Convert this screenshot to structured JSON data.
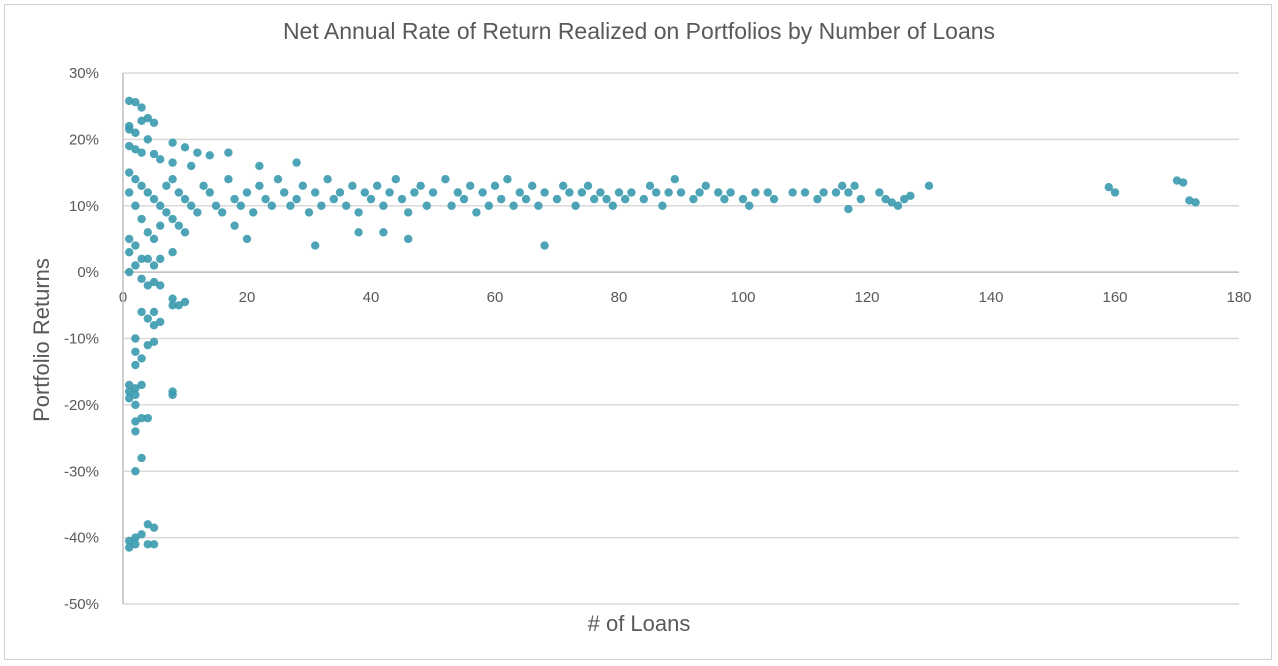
{
  "chart_data": {
    "type": "scatter",
    "title": "Net Annual Rate of Return Realized on Portfolios by Number of Loans",
    "xlabel": "# of Loans",
    "ylabel": "Portfolio Returns",
    "xlim": [
      0,
      180
    ],
    "ylim": [
      -0.5,
      0.3
    ],
    "x_ticks": [
      "0",
      "20",
      "40",
      "60",
      "80",
      "100",
      "120",
      "140",
      "160",
      "180"
    ],
    "y_ticks": [
      "30%",
      "20%",
      "10%",
      "0%",
      "-10%",
      "-20%",
      "-30%",
      "-40%",
      "-50%"
    ],
    "grid": "horizontal",
    "legend": "none",
    "marker_color": "#3a9aae",
    "series": [
      {
        "points": [
          [
            1,
            0.258
          ],
          [
            2,
            0.256
          ],
          [
            3,
            0.248
          ],
          [
            1,
            0.22
          ],
          [
            4,
            0.232
          ],
          [
            3,
            0.228
          ],
          [
            5,
            0.225
          ],
          [
            1,
            0.215
          ],
          [
            2,
            0.21
          ],
          [
            4,
            0.2
          ],
          [
            1,
            0.19
          ],
          [
            2,
            0.185
          ],
          [
            3,
            0.18
          ],
          [
            5,
            0.178
          ],
          [
            6,
            0.17
          ],
          [
            8,
            0.195
          ],
          [
            10,
            0.188
          ],
          [
            12,
            0.18
          ],
          [
            14,
            0.176
          ],
          [
            17,
            0.18
          ],
          [
            28,
            0.165
          ],
          [
            22,
            0.16
          ],
          [
            8,
            0.165
          ],
          [
            11,
            0.16
          ],
          [
            1,
            0.15
          ],
          [
            2,
            0.14
          ],
          [
            3,
            0.13
          ],
          [
            4,
            0.12
          ],
          [
            5,
            0.11
          ],
          [
            6,
            0.1
          ],
          [
            7,
            0.09
          ],
          [
            8,
            0.08
          ],
          [
            9,
            0.07
          ],
          [
            10,
            0.06
          ],
          [
            1,
            0.12
          ],
          [
            2,
            0.1
          ],
          [
            3,
            0.08
          ],
          [
            4,
            0.06
          ],
          [
            5,
            0.05
          ],
          [
            6,
            0.07
          ],
          [
            7,
            0.13
          ],
          [
            8,
            0.14
          ],
          [
            9,
            0.12
          ],
          [
            10,
            0.11
          ],
          [
            11,
            0.1
          ],
          [
            12,
            0.09
          ],
          [
            13,
            0.13
          ],
          [
            14,
            0.12
          ],
          [
            15,
            0.1
          ],
          [
            16,
            0.09
          ],
          [
            17,
            0.14
          ],
          [
            18,
            0.11
          ],
          [
            19,
            0.1
          ],
          [
            20,
            0.12
          ],
          [
            21,
            0.09
          ],
          [
            22,
            0.13
          ],
          [
            23,
            0.11
          ],
          [
            24,
            0.1
          ],
          [
            25,
            0.14
          ],
          [
            26,
            0.12
          ],
          [
            27,
            0.1
          ],
          [
            28,
            0.11
          ],
          [
            29,
            0.13
          ],
          [
            30,
            0.09
          ],
          [
            31,
            0.12
          ],
          [
            32,
            0.1
          ],
          [
            33,
            0.14
          ],
          [
            34,
            0.11
          ],
          [
            35,
            0.12
          ],
          [
            36,
            0.1
          ],
          [
            37,
            0.13
          ],
          [
            38,
            0.09
          ],
          [
            39,
            0.12
          ],
          [
            40,
            0.11
          ],
          [
            41,
            0.13
          ],
          [
            42,
            0.1
          ],
          [
            43,
            0.12
          ],
          [
            44,
            0.14
          ],
          [
            45,
            0.11
          ],
          [
            46,
            0.09
          ],
          [
            47,
            0.12
          ],
          [
            48,
            0.13
          ],
          [
            49,
            0.1
          ],
          [
            50,
            0.12
          ],
          [
            52,
            0.14
          ],
          [
            53,
            0.1
          ],
          [
            54,
            0.12
          ],
          [
            55,
            0.11
          ],
          [
            56,
            0.13
          ],
          [
            57,
            0.09
          ],
          [
            58,
            0.12
          ],
          [
            59,
            0.1
          ],
          [
            60,
            0.13
          ],
          [
            61,
            0.11
          ],
          [
            62,
            0.14
          ],
          [
            63,
            0.1
          ],
          [
            64,
            0.12
          ],
          [
            65,
            0.11
          ],
          [
            66,
            0.13
          ],
          [
            67,
            0.1
          ],
          [
            68,
            0.12
          ],
          [
            70,
            0.11
          ],
          [
            71,
            0.13
          ],
          [
            72,
            0.12
          ],
          [
            73,
            0.1
          ],
          [
            74,
            0.12
          ],
          [
            75,
            0.13
          ],
          [
            76,
            0.11
          ],
          [
            77,
            0.12
          ],
          [
            78,
            0.11
          ],
          [
            79,
            0.1
          ],
          [
            80,
            0.12
          ],
          [
            81,
            0.11
          ],
          [
            82,
            0.12
          ],
          [
            84,
            0.11
          ],
          [
            85,
            0.13
          ],
          [
            86,
            0.12
          ],
          [
            87,
            0.1
          ],
          [
            88,
            0.12
          ],
          [
            89,
            0.14
          ],
          [
            90,
            0.12
          ],
          [
            92,
            0.11
          ],
          [
            93,
            0.12
          ],
          [
            94,
            0.13
          ],
          [
            96,
            0.12
          ],
          [
            97,
            0.11
          ],
          [
            98,
            0.12
          ],
          [
            100,
            0.11
          ],
          [
            101,
            0.1
          ],
          [
            102,
            0.12
          ],
          [
            104,
            0.12
          ],
          [
            105,
            0.11
          ],
          [
            108,
            0.12
          ],
          [
            110,
            0.12
          ],
          [
            112,
            0.11
          ],
          [
            113,
            0.12
          ],
          [
            115,
            0.12
          ],
          [
            116,
            0.13
          ],
          [
            117,
            0.12
          ],
          [
            117,
            0.095
          ],
          [
            118,
            0.13
          ],
          [
            119,
            0.11
          ],
          [
            122,
            0.12
          ],
          [
            123,
            0.11
          ],
          [
            124,
            0.105
          ],
          [
            125,
            0.1
          ],
          [
            126,
            0.11
          ],
          [
            127,
            0.115
          ],
          [
            130,
            0.13
          ],
          [
            31,
            0.04
          ],
          [
            38,
            0.06
          ],
          [
            42,
            0.06
          ],
          [
            46,
            0.05
          ],
          [
            68,
            0.04
          ],
          [
            20,
            0.05
          ],
          [
            18,
            0.07
          ],
          [
            159,
            0.128
          ],
          [
            160,
            0.12
          ],
          [
            170,
            0.138
          ],
          [
            171,
            0.135
          ],
          [
            172,
            0.108
          ],
          [
            173,
            0.105
          ],
          [
            1,
            0.05
          ],
          [
            2,
            0.04
          ],
          [
            1,
            0.03
          ],
          [
            3,
            0.02
          ],
          [
            2,
            0.01
          ],
          [
            4,
            0.02
          ],
          [
            1,
            0.0
          ],
          [
            5,
            0.01
          ],
          [
            6,
            0.02
          ],
          [
            8,
            0.03
          ],
          [
            3,
            -0.01
          ],
          [
            4,
            -0.02
          ],
          [
            5,
            -0.015
          ],
          [
            6,
            -0.02
          ],
          [
            8,
            -0.04
          ],
          [
            10,
            -0.045
          ],
          [
            8,
            -0.05
          ],
          [
            9,
            -0.05
          ],
          [
            5,
            -0.06
          ],
          [
            4,
            -0.07
          ],
          [
            5,
            -0.08
          ],
          [
            6,
            -0.075
          ],
          [
            3,
            -0.06
          ],
          [
            2,
            -0.1
          ],
          [
            4,
            -0.11
          ],
          [
            5,
            -0.105
          ],
          [
            2,
            -0.12
          ],
          [
            2,
            -0.14
          ],
          [
            3,
            -0.13
          ],
          [
            1,
            -0.17
          ],
          [
            1,
            -0.18
          ],
          [
            2,
            -0.175
          ],
          [
            3,
            -0.17
          ],
          [
            2,
            -0.185
          ],
          [
            1,
            -0.19
          ],
          [
            8,
            -0.18
          ],
          [
            8,
            -0.185
          ],
          [
            2,
            -0.2
          ],
          [
            2,
            -0.225
          ],
          [
            3,
            -0.22
          ],
          [
            4,
            -0.22
          ],
          [
            2,
            -0.24
          ],
          [
            3,
            -0.28
          ],
          [
            2,
            -0.3
          ],
          [
            4,
            -0.38
          ],
          [
            5,
            -0.385
          ],
          [
            3,
            -0.395
          ],
          [
            2,
            -0.4
          ],
          [
            1,
            -0.405
          ],
          [
            1,
            -0.415
          ],
          [
            2,
            -0.41
          ],
          [
            4,
            -0.41
          ],
          [
            5,
            -0.41
          ]
        ]
      }
    ]
  }
}
